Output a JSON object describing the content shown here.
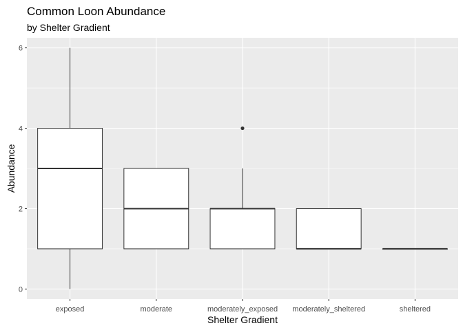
{
  "chart_data": {
    "type": "boxplot",
    "title": "Common Loon Abundance",
    "subtitle": "by Shelter Gradient",
    "xlabel": "Shelter Gradient",
    "ylabel": "Abundance",
    "ylim": [
      -0.25,
      6.25
    ],
    "yticks": [
      0,
      2,
      4,
      6
    ],
    "categories": [
      "exposed",
      "moderate",
      "moderately_exposed",
      "moderately_sheltered",
      "sheltered"
    ],
    "boxes": [
      {
        "category": "exposed",
        "whisker_low": 0,
        "q1": 1,
        "median": 3,
        "q3": 4,
        "whisker_high": 6,
        "outliers": []
      },
      {
        "category": "moderate",
        "whisker_low": 1,
        "q1": 1,
        "median": 2,
        "q3": 3,
        "whisker_high": 3,
        "outliers": []
      },
      {
        "category": "moderately_exposed",
        "whisker_low": 1,
        "q1": 1,
        "median": 2,
        "q3": 2,
        "whisker_high": 3,
        "outliers": [
          4
        ]
      },
      {
        "category": "moderately_sheltered",
        "whisker_low": 1,
        "q1": 1,
        "median": 1,
        "q3": 2,
        "whisker_high": 2,
        "outliers": []
      },
      {
        "category": "sheltered",
        "whisker_low": 1,
        "q1": 1,
        "median": 1,
        "q3": 1,
        "whisker_high": 1,
        "outliers": []
      }
    ],
    "grid": true,
    "legend": "none",
    "colors": {
      "panel": "#ebebeb",
      "grid": "#ffffff",
      "box_fill": "#ffffff",
      "box_line": "#333333"
    }
  }
}
